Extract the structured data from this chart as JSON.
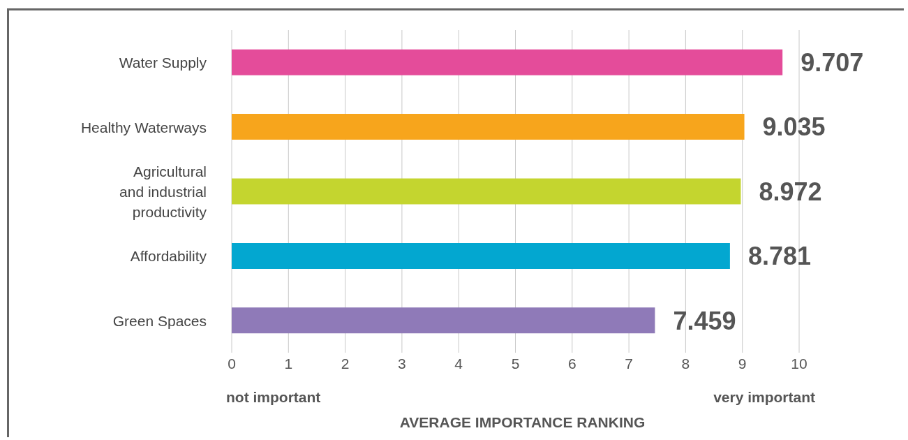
{
  "chart_data": {
    "type": "bar",
    "orientation": "horizontal",
    "categories": [
      "Water Supply",
      "Healthy Waterways",
      "Agricultural and industrial productivity",
      "Affordability",
      "Green Spaces"
    ],
    "values": [
      9.707,
      9.035,
      8.972,
      8.781,
      7.459
    ],
    "colors": [
      "#e44c9a",
      "#f7a51c",
      "#c4d52f",
      "#03a7d0",
      "#8f7ab8"
    ],
    "xlim": [
      0,
      10
    ],
    "xticks": [
      0,
      1,
      2,
      3,
      4,
      5,
      6,
      7,
      8,
      9,
      10
    ],
    "xlabel": "AVERAGE IMPORTANCE RANKING",
    "annotations": [
      "not important",
      "very important"
    ],
    "data_labels": true,
    "grid": "x",
    "legend": false
  }
}
